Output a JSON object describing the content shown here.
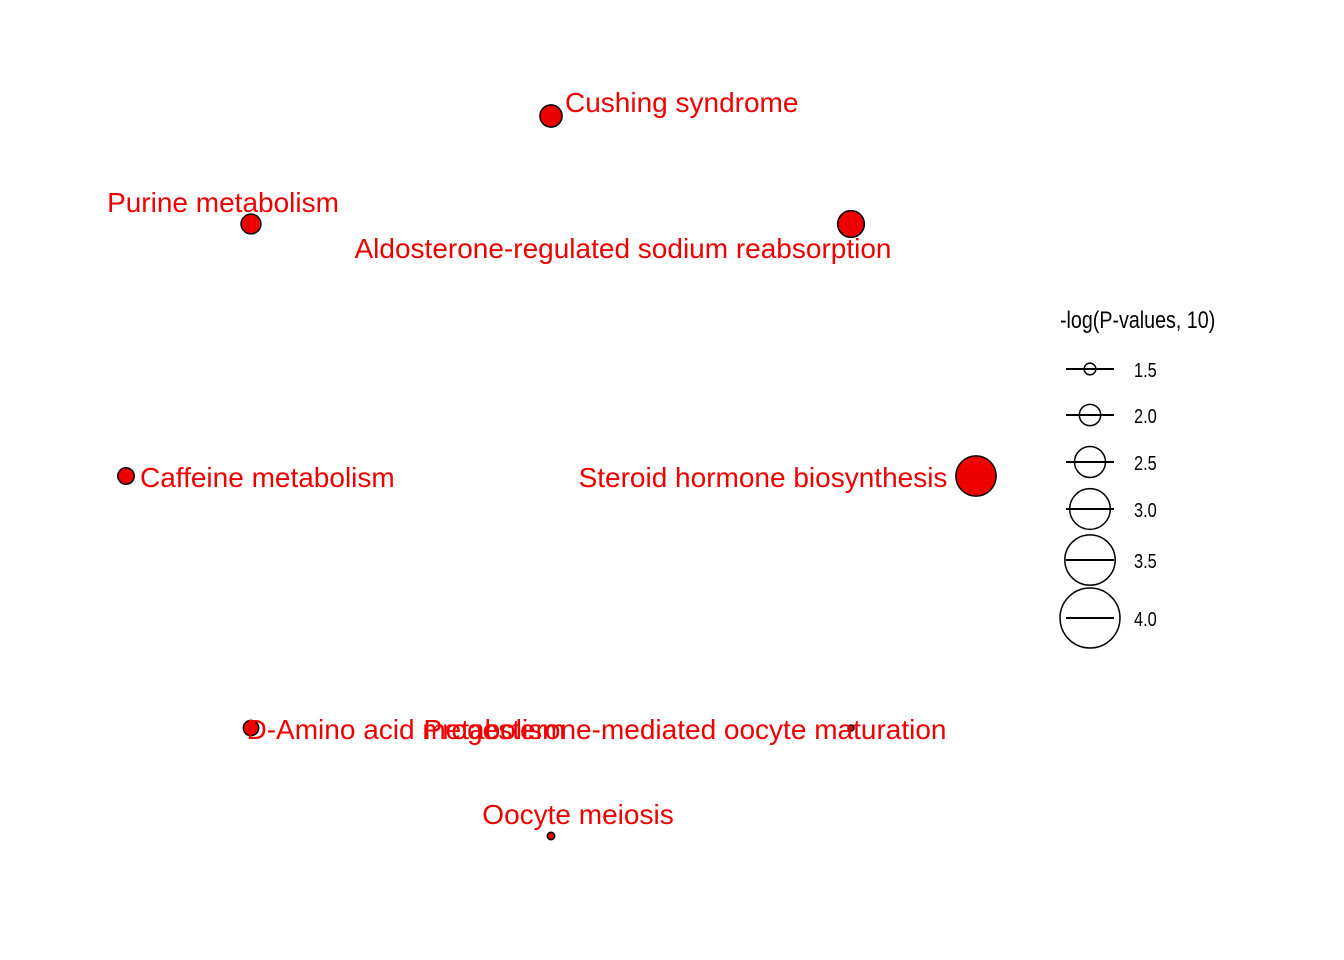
{
  "chart_data": {
    "type": "network",
    "node_color": "#ee0000",
    "label_color": "#ee0000",
    "outline_color": "#000000",
    "nodes": [
      {
        "name": "Cushing syndrome",
        "x": 0.0,
        "y": 3.0,
        "neg_log_p": 2.6
      },
      {
        "name": "Purine metabolism",
        "x": -1.2,
        "y": 2.1,
        "neg_log_p": 2.4
      },
      {
        "name": "Aldosterone-regulated sodium reabsorption",
        "x": 1.2,
        "y": 2.1,
        "neg_log_p": 3.0
      },
      {
        "name": "Caffeine metabolism",
        "x": -1.7,
        "y": 0.0,
        "neg_log_p": 2.1
      },
      {
        "name": "Steroid hormone biosynthesis",
        "x": 1.7,
        "y": 0.0,
        "neg_log_p": 4.2
      },
      {
        "name": "D-Amino acid metabolism",
        "x": -1.2,
        "y": -2.1,
        "neg_log_p": 2.0
      },
      {
        "name": "Progesterone-mediated oocyte maturation",
        "x": 1.2,
        "y": -2.1,
        "neg_log_p": 1.1
      },
      {
        "name": "Oocyte meiosis",
        "x": 0.0,
        "y": -3.0,
        "neg_log_p": 1.3
      }
    ],
    "legend": {
      "title": "-log(P-values, 10)",
      "values": [
        1.5,
        2.0,
        2.5,
        3.0,
        3.5,
        4.0
      ],
      "labels": [
        "1.5",
        "2.0",
        "2.5",
        "3.0",
        "3.5",
        "4.0"
      ]
    }
  }
}
